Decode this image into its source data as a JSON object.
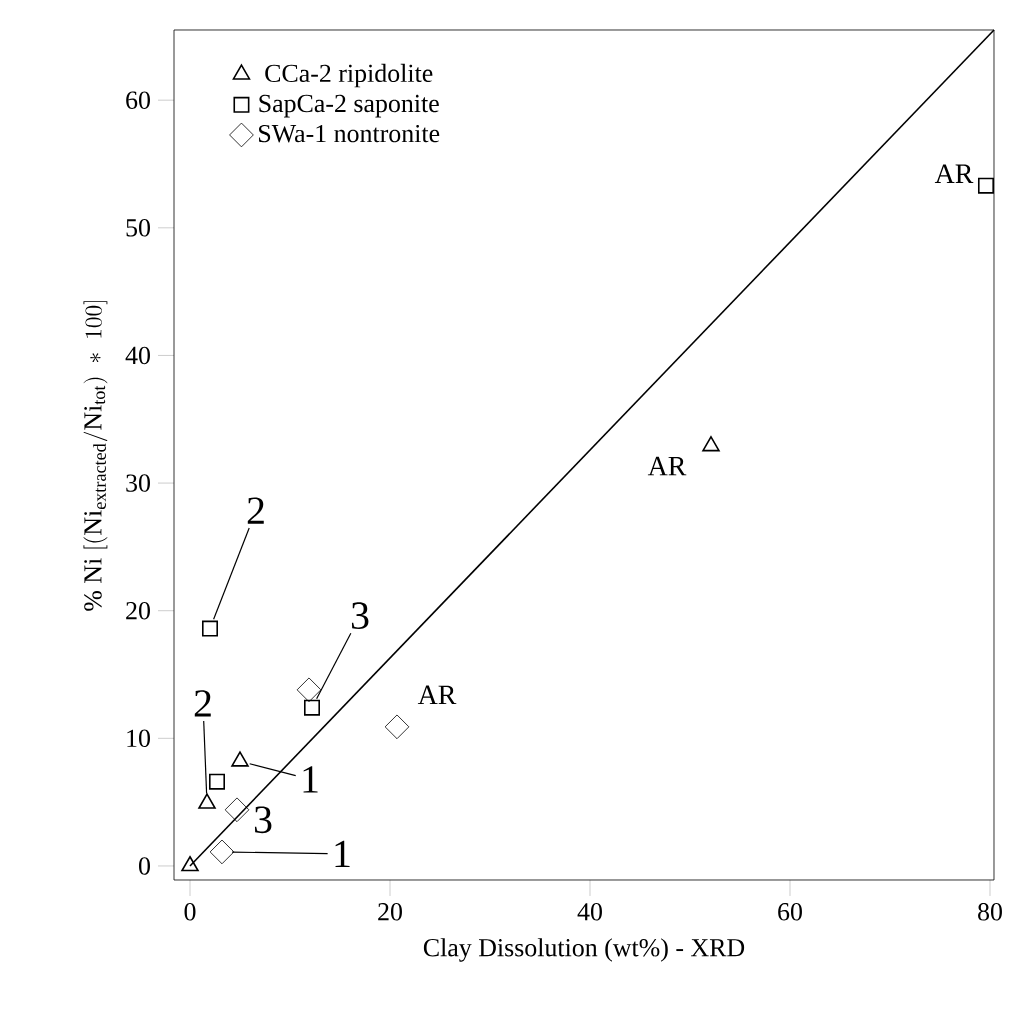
{
  "chart_data": {
    "type": "scatter",
    "xlabel": "Clay Dissolution (wt%) - XRD",
    "ylabel": "\\%\\ \\mathrm{Ni}\\ [(\\mathrm{Ni}_{\\mathrm{extracted}}/\\mathrm{Ni}_{\\mathrm{tot}})\\ *\\ 100]",
    "xlim": [
      -1.6,
      80.4
    ],
    "ylim": [
      -1.1,
      65.5
    ],
    "xticks": [
      0,
      20,
      40,
      60,
      80
    ],
    "yticks": [
      0,
      10,
      20,
      30,
      40,
      50,
      60
    ],
    "grid": false,
    "legend": "top left",
    "series": [
      {
        "name": "CCa-2 ripidolite",
        "color": "#000000",
        "marker": "triangle",
        "x": [
          0,
          1.7,
          5.0,
          52.1
        ],
        "values": [
          0,
          4.9,
          8.2,
          32.9
        ]
      },
      {
        "name": "SapCa-2 saponite",
        "color": "#000000",
        "marker": "square",
        "x": [
          2.0,
          2.7,
          12.2,
          79.6
        ],
        "values": [
          18.6,
          6.6,
          12.4,
          53.3
        ]
      },
      {
        "name": "SWa-1 nontronite",
        "color": "#000000",
        "marker": "diamond",
        "x": [
          3.2,
          4.7,
          11.9,
          20.7
        ],
        "values": [
          1.1,
          4.4,
          13.8,
          10.9
        ]
      },
      {
        "type": "line",
        "color": "#000000",
        "marker": "none",
        "x": [
          0,
          80.4
        ],
        "values": [
          0,
          65.5
        ]
      }
    ],
    "annotations": [
      {
        "text": "2",
        "x": 2.0,
        "y": 18.6
      },
      {
        "text": "3",
        "x": 12.2,
        "y": 12.4
      },
      {
        "text": "2",
        "x": 1.7,
        "y": 4.9
      },
      {
        "text": "1",
        "x": 5.0,
        "y": 8.2
      },
      {
        "text": "3",
        "x": 4.7,
        "y": 4.4
      },
      {
        "text": "1",
        "x": 3.2,
        "y": 1.1
      },
      {
        "text": "AR",
        "x": 20.7,
        "y": 10.9
      },
      {
        "text": "AR",
        "x": 52.1,
        "y": 32.9
      },
      {
        "text": "AR",
        "x": 79.6,
        "y": 53.3
      }
    ]
  }
}
